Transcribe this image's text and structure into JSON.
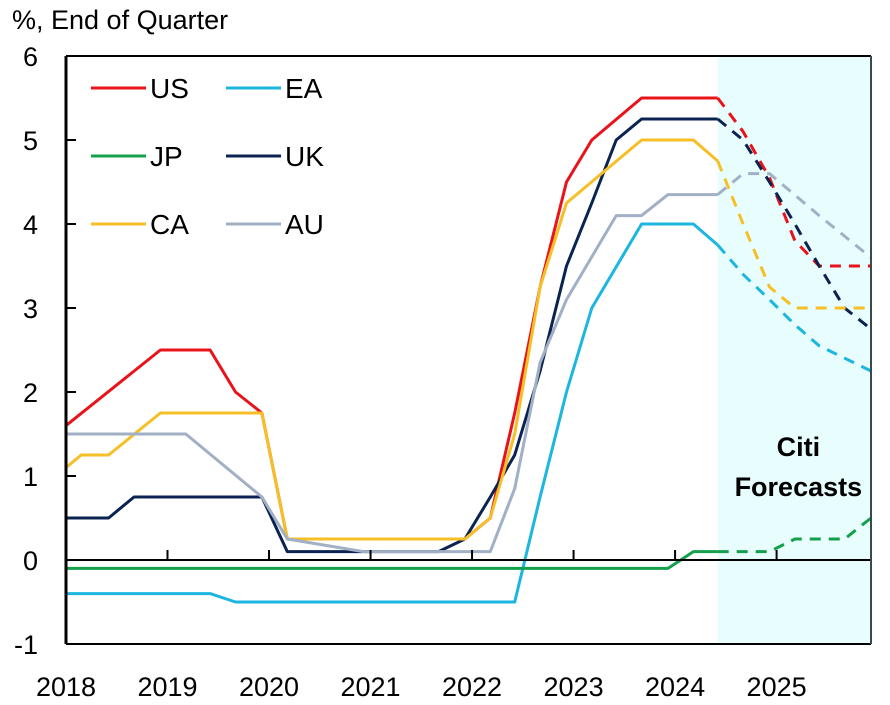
{
  "chart_data": {
    "type": "line",
    "title": "",
    "ylabel": "%, End of Quarter",
    "xlabel": "",
    "xlim": [
      2018,
      2025.93
    ],
    "ylim": [
      -1,
      6
    ],
    "yticks": [
      "-1",
      "0",
      "1",
      "2",
      "3",
      "4",
      "5",
      "6"
    ],
    "xticks": [
      "2018",
      "2019",
      "2020",
      "2021",
      "2022",
      "2023",
      "2024",
      "2025"
    ],
    "grid": false,
    "legend_position": "top-left",
    "forecast_start": 2024.42,
    "annotation": "Citi Forecasts",
    "colors": {
      "US": "#e8141a",
      "EA": "#1cb6e0",
      "JP": "#14a04a",
      "UK": "#0b2350",
      "CA": "#f6bf26",
      "AU": "#a2b0c6",
      "forecast_shade": "#e8fdfd"
    },
    "series": [
      {
        "name": "US",
        "values": [
          [
            2018.0,
            1.6
          ],
          [
            2018.93,
            2.5
          ],
          [
            2019.42,
            2.5
          ],
          [
            2019.67,
            2.0
          ],
          [
            2019.93,
            1.75
          ],
          [
            2020.18,
            0.25
          ],
          [
            2021.93,
            0.25
          ],
          [
            2022.18,
            0.5
          ],
          [
            2022.42,
            1.75
          ],
          [
            2022.67,
            3.25
          ],
          [
            2022.93,
            4.5
          ],
          [
            2023.18,
            5.0
          ],
          [
            2023.67,
            5.5
          ],
          [
            2024.42,
            5.5
          ],
          [
            2024.67,
            5.1
          ],
          [
            2024.93,
            4.55
          ],
          [
            2025.18,
            3.8
          ],
          [
            2025.42,
            3.5
          ],
          [
            2025.93,
            3.5
          ]
        ]
      },
      {
        "name": "EA",
        "values": [
          [
            2018.0,
            -0.4
          ],
          [
            2019.42,
            -0.4
          ],
          [
            2019.67,
            -0.5
          ],
          [
            2022.42,
            -0.5
          ],
          [
            2022.67,
            0.75
          ],
          [
            2022.93,
            2.0
          ],
          [
            2023.18,
            3.0
          ],
          [
            2023.67,
            4.0
          ],
          [
            2024.18,
            4.0
          ],
          [
            2024.42,
            3.75
          ],
          [
            2024.67,
            3.4
          ],
          [
            2024.93,
            3.1
          ],
          [
            2025.18,
            2.8
          ],
          [
            2025.42,
            2.55
          ],
          [
            2025.93,
            2.25
          ]
        ]
      },
      {
        "name": "JP",
        "values": [
          [
            2018.0,
            -0.1
          ],
          [
            2023.93,
            -0.1
          ],
          [
            2024.18,
            0.1
          ],
          [
            2024.42,
            0.1
          ],
          [
            2024.93,
            0.1
          ],
          [
            2025.18,
            0.25
          ],
          [
            2025.67,
            0.25
          ],
          [
            2025.93,
            0.5
          ]
        ]
      },
      {
        "name": "UK",
        "values": [
          [
            2018.0,
            0.5
          ],
          [
            2018.42,
            0.5
          ],
          [
            2018.67,
            0.75
          ],
          [
            2019.93,
            0.75
          ],
          [
            2020.18,
            0.1
          ],
          [
            2021.67,
            0.1
          ],
          [
            2021.93,
            0.25
          ],
          [
            2022.18,
            0.75
          ],
          [
            2022.42,
            1.25
          ],
          [
            2022.67,
            2.25
          ],
          [
            2022.93,
            3.5
          ],
          [
            2023.18,
            4.25
          ],
          [
            2023.42,
            5.0
          ],
          [
            2023.67,
            5.25
          ],
          [
            2024.42,
            5.25
          ],
          [
            2024.67,
            5.0
          ],
          [
            2024.93,
            4.5
          ],
          [
            2025.18,
            4.0
          ],
          [
            2025.42,
            3.5
          ],
          [
            2025.67,
            3.0
          ],
          [
            2025.93,
            2.75
          ]
        ]
      },
      {
        "name": "CA",
        "values": [
          [
            2018.0,
            1.1
          ],
          [
            2018.15,
            1.25
          ],
          [
            2018.42,
            1.25
          ],
          [
            2018.93,
            1.75
          ],
          [
            2019.93,
            1.75
          ],
          [
            2020.18,
            0.25
          ],
          [
            2021.93,
            0.25
          ],
          [
            2022.18,
            0.5
          ],
          [
            2022.42,
            1.5
          ],
          [
            2022.67,
            3.25
          ],
          [
            2022.93,
            4.25
          ],
          [
            2023.67,
            5.0
          ],
          [
            2024.18,
            5.0
          ],
          [
            2024.42,
            4.75
          ],
          [
            2024.67,
            4.0
          ],
          [
            2024.93,
            3.25
          ],
          [
            2025.18,
            3.0
          ],
          [
            2025.93,
            3.0
          ]
        ]
      },
      {
        "name": "AU",
        "values": [
          [
            2018.0,
            1.5
          ],
          [
            2019.18,
            1.5
          ],
          [
            2019.93,
            0.75
          ],
          [
            2020.18,
            0.25
          ],
          [
            2020.93,
            0.1
          ],
          [
            2022.18,
            0.1
          ],
          [
            2022.42,
            0.85
          ],
          [
            2022.67,
            2.35
          ],
          [
            2022.93,
            3.1
          ],
          [
            2023.42,
            4.1
          ],
          [
            2023.67,
            4.1
          ],
          [
            2023.93,
            4.35
          ],
          [
            2024.42,
            4.35
          ],
          [
            2024.67,
            4.6
          ],
          [
            2024.93,
            4.6
          ],
          [
            2025.42,
            4.1
          ],
          [
            2025.93,
            3.6
          ]
        ]
      }
    ]
  }
}
